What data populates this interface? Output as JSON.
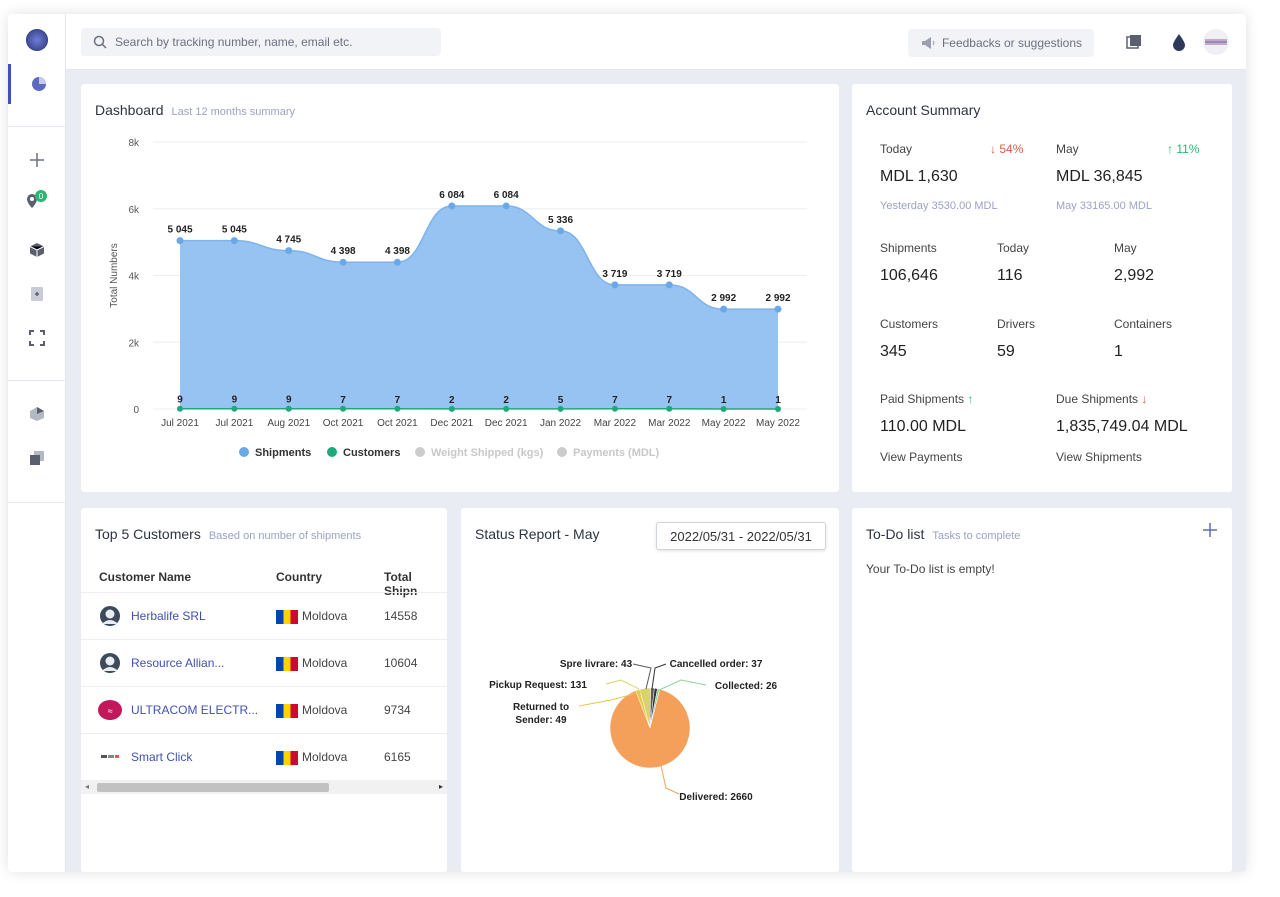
{
  "search": {
    "placeholder": "Search by tracking number, name, email etc."
  },
  "header": {
    "feedback_label": "Feedbacks or suggestions"
  },
  "sidebar": {
    "badge_count": "0"
  },
  "dashboard": {
    "title": "Dashboard",
    "subtitle": "Last 12 months summary"
  },
  "chart_data": {
    "type": "area",
    "title": "Dashboard",
    "subtitle": "Last 12 months summary",
    "ylabel": "Total Numbers",
    "xlabel": "",
    "ylim": [
      0,
      8000
    ],
    "yticks": [
      "0",
      "2k",
      "4k",
      "6k",
      "8k"
    ],
    "ytick_values": [
      0,
      2000,
      4000,
      6000,
      8000
    ],
    "grid": true,
    "legend_position": "bottom",
    "categories": [
      "Jul 2021",
      "Jul 2021",
      "Aug 2021",
      "Oct 2021",
      "Oct 2021",
      "Dec 2021",
      "Dec 2021",
      "Jan 2022",
      "Mar 2022",
      "Mar 2022",
      "May 2022",
      "May 2022"
    ],
    "series": [
      {
        "name": "Shipments",
        "color": "#90c0f0",
        "point_color": "#6aa9e9",
        "values": [
          5045,
          5045,
          4745,
          4398,
          4398,
          6084,
          6084,
          5336,
          3719,
          3719,
          2992,
          2992
        ],
        "labels": [
          "5 045",
          "5 045",
          "4 745",
          "4 398",
          "4 398",
          "6 084",
          "6 084",
          "5 336",
          "3 719",
          "3 719",
          "2 992",
          "2 992"
        ]
      },
      {
        "name": "Customers",
        "color": "#1fa97a",
        "values": [
          9,
          9,
          9,
          7,
          7,
          2,
          2,
          5,
          7,
          7,
          1,
          1
        ],
        "labels": [
          "9",
          "9",
          "9",
          "7",
          "7",
          "2",
          "2",
          "5",
          "7",
          "7",
          "1",
          "1"
        ]
      }
    ],
    "legend": [
      {
        "name": "Shipments",
        "color": "#6aa9e9",
        "active": true
      },
      {
        "name": "Customers",
        "color": "#1fa97a",
        "active": true
      },
      {
        "name": "Weight Shipped (kgs)",
        "color": "#cccccc",
        "active": false
      },
      {
        "name": "Payments (MDL)",
        "color": "#cccccc",
        "active": false
      }
    ]
  },
  "account": {
    "title": "Account Summary",
    "today_label": "Today",
    "today_change": "54%",
    "today_value": "MDL 1,630",
    "yesterday": "Yesterday 3530.00 MDL",
    "month_label": "May",
    "month_change": "11%",
    "month_value": "MDL 36,845",
    "month_prev": "May 33165.00 MDL",
    "shipments_label": "Shipments",
    "shipments_value": "106,646",
    "shipments_today_label": "Today",
    "shipments_today_value": "116",
    "shipments_may_label": "May",
    "shipments_may_value": "2,992",
    "customers_label": "Customers",
    "customers_value": "345",
    "drivers_label": "Drivers",
    "drivers_value": "59",
    "containers_label": "Containers",
    "containers_value": "1",
    "paid_label": "Paid Shipments",
    "paid_value": "110.00 MDL",
    "paid_link": "View Payments",
    "due_label": "Due Shipments",
    "due_value": "1,835,749.04 MDL",
    "due_link": "View Shipments"
  },
  "top_customers": {
    "title": "Top 5 Customers",
    "subtitle": "Based on number of shipments",
    "headers": [
      "Customer Name",
      "Country",
      "Total Shipn"
    ],
    "rows": [
      {
        "name": "Herbalife SRL",
        "country": "Moldova",
        "total": "14558",
        "avatar": "person-avatar"
      },
      {
        "name": "Resource Allian...",
        "country": "Moldova",
        "total": "10604",
        "avatar": "person-avatar"
      },
      {
        "name": "ULTRACOM ELECTR...",
        "country": "Moldova",
        "total": "9734",
        "avatar": "ultracom-logo"
      },
      {
        "name": "Smart Click",
        "country": "Moldova",
        "total": "6165",
        "avatar": "smart-click-logo"
      }
    ]
  },
  "status_report": {
    "title": "Status Report - May",
    "date_range": "2022/05/31 - 2022/05/31"
  },
  "status_chart_data": {
    "type": "pie",
    "slices": [
      {
        "label": "Delivered: 2660",
        "name": "Delivered",
        "value": 2660,
        "color": "#f4a05a"
      },
      {
        "label": "Returned to Sender: 49",
        "name": "Returned to Sender",
        "value": 49,
        "color": "#e6c84a"
      },
      {
        "label": "Pickup Request: 131",
        "name": "Pickup Request",
        "value": 131,
        "color": "#d9d36a"
      },
      {
        "label": "Spre livrare: 43",
        "name": "Spre livrare",
        "value": 43,
        "color": "#5a5a5a"
      },
      {
        "label": "Cancelled order: 37",
        "name": "Cancelled order",
        "value": 37,
        "color": "#333333"
      },
      {
        "label": "Collected: 26",
        "name": "Collected",
        "value": 26,
        "color": "#8fd19e"
      }
    ]
  },
  "todo": {
    "title": "To-Do list",
    "subtitle": "Tasks to complete",
    "empty": "Your To-Do list is empty!"
  }
}
